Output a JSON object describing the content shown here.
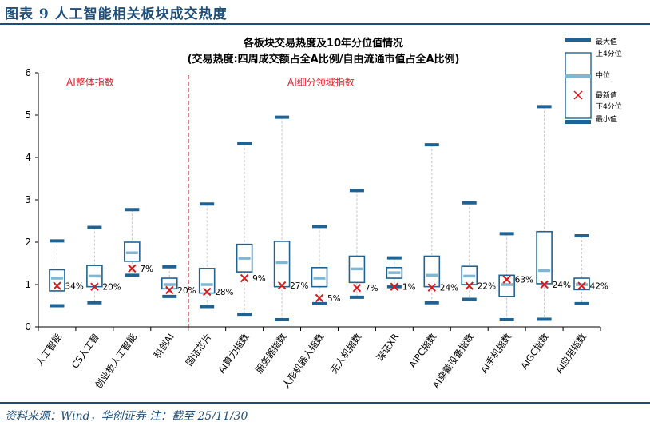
{
  "header": {
    "title": "图表 9   人工智能相关板块成交热度"
  },
  "footer": {
    "source": "资料来源：Wind，华创证券   注：截至 25/11/30"
  },
  "chart_data": {
    "type": "boxplot",
    "title": "各板块交易热度及10年分位值情况",
    "subtitle": "(交易热度:四周成交额占全A比例/自由流通市值占全A比例)",
    "ylim": [
      0,
      6
    ],
    "yticks": [
      0,
      1,
      2,
      3,
      4,
      5,
      6
    ],
    "group_labels": [
      "AI整体指数",
      "AI细分领域指数"
    ],
    "legend": [
      "最大值",
      "上4分位",
      "中位",
      "最新值",
      "下4分位",
      "最小值"
    ],
    "categories": [
      "人工智能",
      "CS人工智",
      "创业板人工智能",
      "科创AI",
      "国证芯片",
      "AI算力指数",
      "服务器指数",
      "人形机器人指数",
      "无人机指数",
      "深证XR",
      "AIPC指数",
      "AI穿戴设备指数",
      "AI手机指数",
      "AIGC指数",
      "AI应用指数"
    ],
    "series": [
      {
        "max": 2.03,
        "q3": 1.35,
        "median": 1.15,
        "q1": 0.85,
        "min": 0.5,
        "latest": 0.97,
        "pct": "34%"
      },
      {
        "max": 2.35,
        "q3": 1.45,
        "median": 1.2,
        "q1": 0.95,
        "min": 0.57,
        "latest": 0.95,
        "pct": "20%"
      },
      {
        "max": 2.77,
        "q3": 2.0,
        "median": 1.75,
        "q1": 1.55,
        "min": 1.22,
        "latest": 1.38,
        "pct": "7%"
      },
      {
        "max": 1.42,
        "q3": 1.15,
        "median": 1.0,
        "q1": 0.9,
        "min": 0.72,
        "latest": 0.87,
        "pct": "20%"
      },
      {
        "max": 2.9,
        "q3": 1.38,
        "median": 1.0,
        "q1": 0.8,
        "min": 0.48,
        "latest": 0.83,
        "pct": "28%"
      },
      {
        "max": 4.32,
        "q3": 1.95,
        "median": 1.62,
        "q1": 1.3,
        "min": 0.3,
        "latest": 1.15,
        "pct": "9%"
      },
      {
        "max": 4.95,
        "q3": 2.02,
        "median": 1.52,
        "q1": 0.95,
        "min": 0.17,
        "latest": 0.98,
        "pct": "27%"
      },
      {
        "max": 2.37,
        "q3": 1.4,
        "median": 1.15,
        "q1": 0.95,
        "min": 0.55,
        "latest": 0.68,
        "pct": "5%"
      },
      {
        "max": 3.22,
        "q3": 1.67,
        "median": 1.37,
        "q1": 1.05,
        "min": 0.7,
        "latest": 0.92,
        "pct": "7%"
      },
      {
        "max": 1.63,
        "q3": 1.4,
        "median": 1.28,
        "q1": 1.15,
        "min": 0.95,
        "latest": 0.95,
        "pct": "1%"
      },
      {
        "max": 4.3,
        "q3": 1.67,
        "median": 1.22,
        "q1": 0.95,
        "min": 0.57,
        "latest": 0.93,
        "pct": "24%"
      },
      {
        "max": 2.93,
        "q3": 1.43,
        "median": 1.2,
        "q1": 1.0,
        "min": 0.65,
        "latest": 0.97,
        "pct": "22%"
      },
      {
        "max": 2.2,
        "q3": 1.22,
        "median": 1.0,
        "q1": 0.72,
        "min": 0.17,
        "latest": 1.12,
        "pct": "63%"
      },
      {
        "max": 5.2,
        "q3": 2.25,
        "median": 1.33,
        "q1": 1.02,
        "min": 0.18,
        "latest": 1.0,
        "pct": "24%"
      },
      {
        "max": 2.15,
        "q3": 1.15,
        "median": 1.0,
        "q1": 0.88,
        "min": 0.55,
        "latest": 0.97,
        "pct": "42%"
      }
    ],
    "colors": {
      "box": "#1f6394",
      "median": "#7fb6d1",
      "latest": "#d7191c",
      "whisker": "#c8c8c8",
      "divider": "#c00000"
    }
  }
}
